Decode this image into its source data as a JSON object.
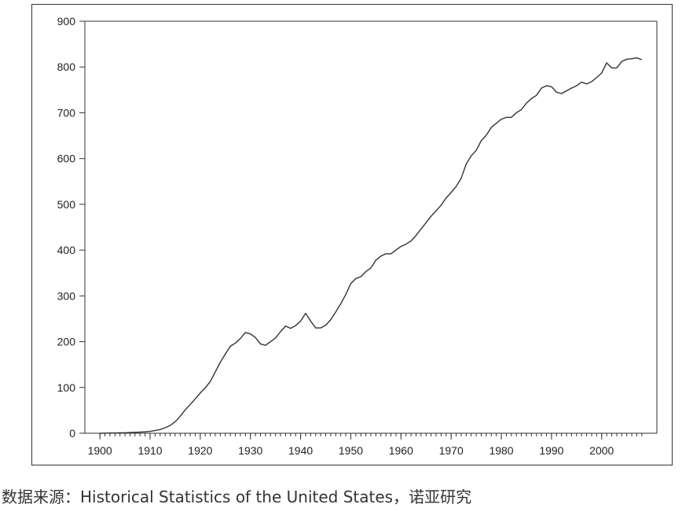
{
  "chart_data": {
    "type": "line",
    "title": "",
    "xlabel": "",
    "ylabel": "",
    "xlim": [
      1897,
      2011
    ],
    "ylim": [
      0,
      900
    ],
    "x_ticks": [
      1900,
      1910,
      1920,
      1930,
      1940,
      1950,
      1960,
      1970,
      1980,
      1990,
      2000
    ],
    "y_ticks": [
      0,
      100,
      200,
      300,
      400,
      500,
      600,
      700,
      800,
      900
    ],
    "minor_x_tick_step": 1,
    "grid": false,
    "legend": "none",
    "line_color": "#333333",
    "series": [
      {
        "x": [
          1900,
          1901,
          1902,
          1903,
          1904,
          1905,
          1906,
          1907,
          1908,
          1909,
          1910,
          1911,
          1912,
          1913,
          1914,
          1915,
          1916,
          1917,
          1918,
          1919,
          1920,
          1921,
          1922,
          1923,
          1924,
          1925,
          1926,
          1927,
          1928,
          1929,
          1930,
          1931,
          1932,
          1933,
          1934,
          1935,
          1936,
          1937,
          1938,
          1939,
          1940,
          1941,
          1942,
          1943,
          1944,
          1945,
          1946,
          1947,
          1948,
          1949,
          1950,
          1951,
          1952,
          1953,
          1954,
          1955,
          1956,
          1957,
          1958,
          1959,
          1960,
          1961,
          1962,
          1963,
          1964,
          1965,
          1966,
          1967,
          1968,
          1969,
          1970,
          1971,
          1972,
          1973,
          1974,
          1975,
          1976,
          1977,
          1978,
          1979,
          1980,
          1981,
          1982,
          1983,
          1984,
          1985,
          1986,
          1987,
          1988,
          1989,
          1990,
          1991,
          1992,
          1993,
          1994,
          1995,
          1996,
          1997,
          1998,
          1999,
          2000,
          2001,
          2002,
          2003,
          2004,
          2005,
          2006,
          2007,
          2008
        ],
        "values": [
          0,
          0,
          0.5,
          0.5,
          1,
          1,
          1.5,
          2,
          2.5,
          3,
          4,
          6,
          8,
          12,
          17,
          25,
          37,
          51,
          63,
          75,
          88,
          99,
          113,
          134,
          155,
          173,
          190,
          197,
          207,
          220,
          217,
          209,
          195,
          192,
          200,
          208,
          222,
          234,
          229,
          235,
          245,
          262,
          245,
          230,
          230,
          236,
          248,
          265,
          283,
          303,
          327,
          338,
          342,
          353,
          361,
          378,
          387,
          392,
          392,
          400,
          408,
          413,
          420,
          432,
          446,
          460,
          474,
          486,
          498,
          514,
          526,
          539,
          557,
          588,
          606,
          618,
          639,
          651,
          668,
          677,
          686,
          690,
          690,
          700,
          707,
          721,
          731,
          738,
          754,
          759,
          757,
          745,
          742,
          748,
          754,
          759,
          767,
          763,
          768,
          777,
          787,
          809,
          798,
          798,
          812,
          817,
          818,
          820,
          816
        ]
      }
    ]
  },
  "footer": {
    "source_note": "数据来源：Historical Statistics of the United States，诺亚研究"
  }
}
